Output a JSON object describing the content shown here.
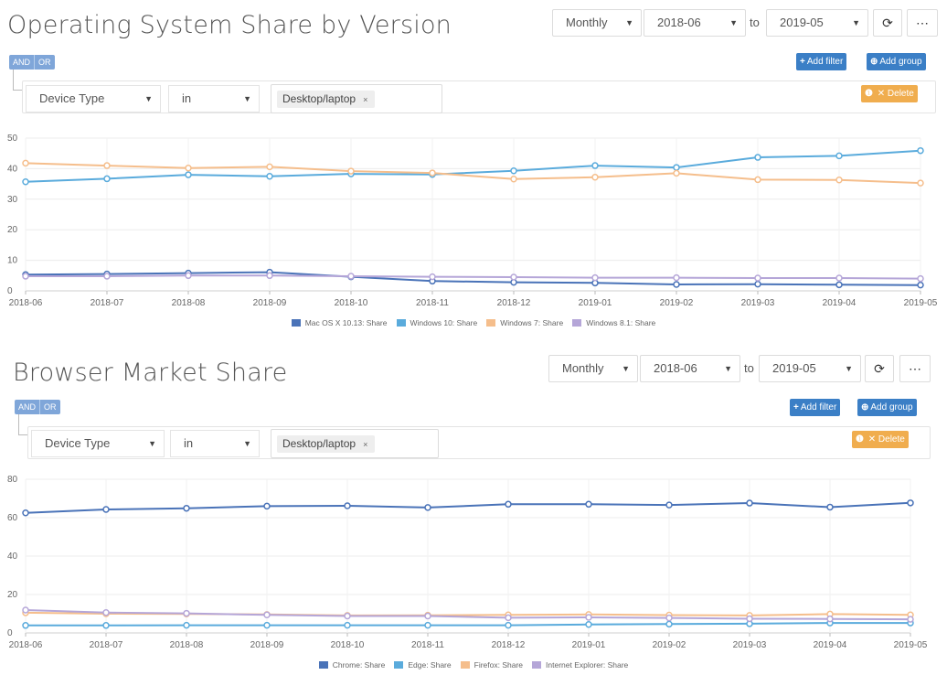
{
  "common": {
    "period": "Monthly",
    "from": "2018-06",
    "to_label": "to",
    "to": "2019-05",
    "refresh_icon": "refresh-icon",
    "more_icon": "ellipsis-icon",
    "and_label": "AND",
    "or_label": "OR",
    "add_filter_label": "Add filter",
    "add_group_label": "Add group",
    "delete_label": "Delete",
    "filter_field": "Device Type",
    "filter_op": "in",
    "filter_value": "Desktop/laptop",
    "tag_remove": "×"
  },
  "charts": [
    {
      "title": "Operating System Share by Version",
      "chart_data": {
        "type": "line",
        "categories": [
          "2018-06",
          "2018-07",
          "2018-08",
          "2018-09",
          "2018-10",
          "2018-11",
          "2018-12",
          "2019-01",
          "2019-02",
          "2019-03",
          "2019-04",
          "2019-05"
        ],
        "ylim": [
          0,
          50
        ],
        "yticks": [
          0,
          10,
          20,
          30,
          40,
          50
        ],
        "grid": true,
        "legend_position": "bottom",
        "series": [
          {
            "name": "Mac OS X 10.13: Share",
            "color": "#4a73b8",
            "values": [
              5.3,
              5.5,
              5.8,
              6.1,
              4.6,
              3.2,
              2.8,
              2.6,
              2.1,
              2.2,
              2.0,
              1.9
            ]
          },
          {
            "name": "Windows 10: Share",
            "color": "#5aabdc",
            "values": [
              35.7,
              36.7,
              38.0,
              37.5,
              38.3,
              38.1,
              39.3,
              41.0,
              40.4,
              43.7,
              44.2,
              45.9
            ]
          },
          {
            "name": "Windows 7: Share",
            "color": "#f5be8c",
            "values": [
              41.8,
              41.0,
              40.2,
              40.6,
              39.2,
              38.6,
              36.6,
              37.2,
              38.5,
              36.4,
              36.3,
              35.3
            ]
          },
          {
            "name": "Windows 8.1: Share",
            "color": "#b5a6d8",
            "values": [
              4.8,
              4.8,
              5.0,
              5.0,
              4.8,
              4.6,
              4.5,
              4.3,
              4.3,
              4.2,
              4.2,
              4.0
            ]
          }
        ]
      }
    },
    {
      "title": "Browser Market Share",
      "chart_data": {
        "type": "line",
        "categories": [
          "2018-06",
          "2018-07",
          "2018-08",
          "2018-09",
          "2018-10",
          "2018-11",
          "2018-12",
          "2019-01",
          "2019-02",
          "2019-03",
          "2019-04",
          "2019-05"
        ],
        "ylim": [
          0,
          80
        ],
        "yticks": [
          0,
          20,
          40,
          60,
          80
        ],
        "grid": true,
        "legend_position": "bottom",
        "series": [
          {
            "name": "Chrome: Share",
            "color": "#4a73b8",
            "values": [
              62.5,
              64.3,
              64.9,
              66.0,
              66.2,
              65.3,
              67.0,
              67.0,
              66.6,
              67.6,
              65.5,
              67.7
            ]
          },
          {
            "name": "Edge: Share",
            "color": "#5aabdc",
            "values": [
              3.9,
              3.9,
              4.0,
              4.0,
              4.0,
              4.0,
              4.0,
              4.4,
              4.6,
              4.8,
              5.2,
              5.2
            ]
          },
          {
            "name": "Firefox: Share",
            "color": "#f5be8c",
            "values": [
              10.5,
              10.0,
              9.9,
              9.6,
              9.1,
              9.2,
              9.4,
              9.6,
              9.3,
              9.1,
              9.8,
              9.4
            ]
          },
          {
            "name": "Internet Explorer: Share",
            "color": "#b5a6d8",
            "values": [
              11.9,
              10.6,
              10.2,
              9.4,
              8.8,
              8.8,
              7.9,
              8.1,
              7.8,
              7.4,
              7.3,
              7.1
            ]
          }
        ]
      }
    }
  ]
}
